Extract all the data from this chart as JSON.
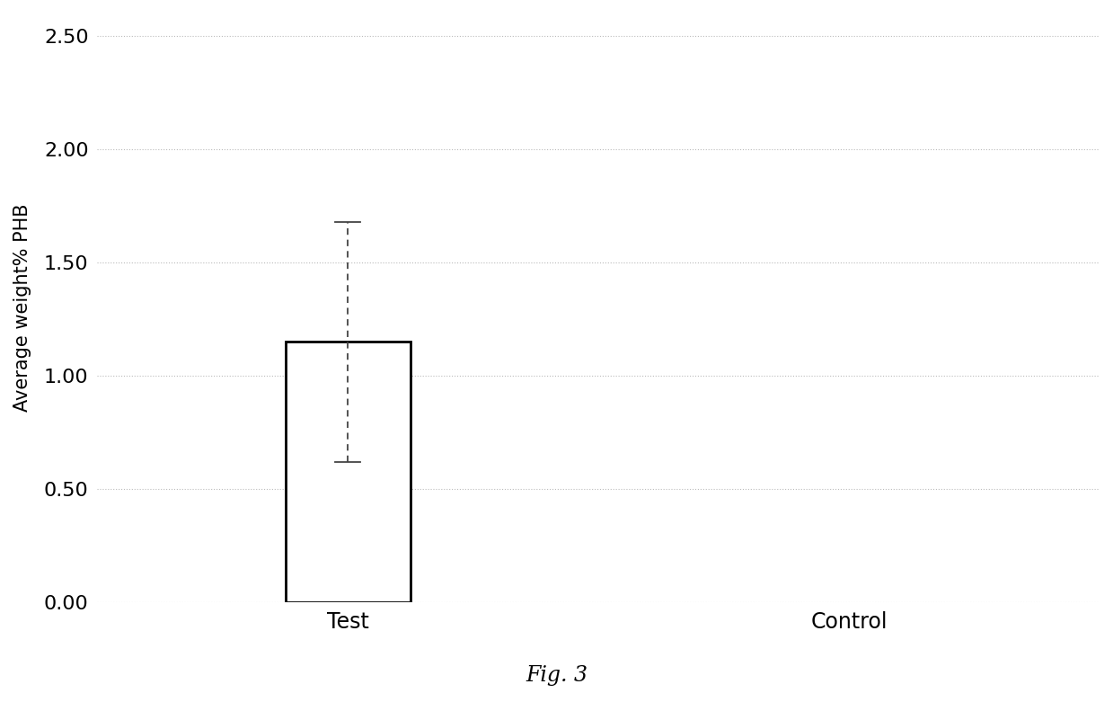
{
  "categories": [
    "Test",
    "Control"
  ],
  "values": [
    1.15,
    0.0
  ],
  "error_upper": 0.53,
  "error_lower": 0.53,
  "bar_color": "#ffffff",
  "bar_edge_color": "#000000",
  "bar_linewidth": 2.0,
  "bar_width": 0.25,
  "x_test": 1,
  "x_control": 2,
  "xlim": [
    0.5,
    2.5
  ],
  "ylim": [
    0.0,
    2.6
  ],
  "yticks": [
    0.0,
    0.5,
    1.0,
    1.5,
    2.0,
    2.5
  ],
  "ylabel": "Average weight% PHB",
  "caption": "Fig. 3",
  "background_color": "#ffffff",
  "grid_color": "#bbbbbb",
  "grid_style": "dotted",
  "error_bar_color": "#444444",
  "ylabel_fontsize": 15,
  "tick_fontsize": 16,
  "xtick_fontsize": 17,
  "caption_fontsize": 17
}
